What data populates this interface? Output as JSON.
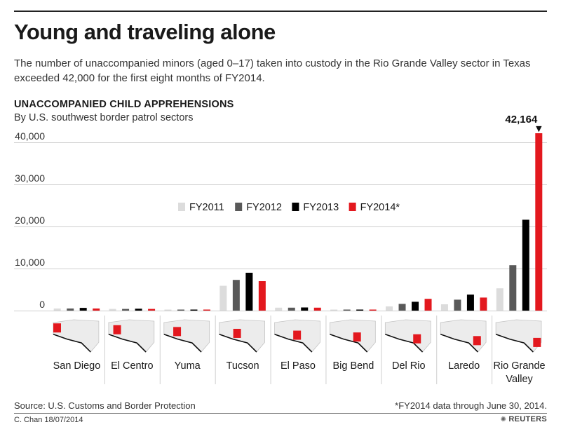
{
  "header": {
    "title": "Young and traveling alone",
    "subtitle": "The number of unaccompanied minors (aged 0–17) taken into custody in the Rio Grande Valley sector in Texas exceeded 42,000 for the first eight months of FY2014."
  },
  "chart_data": {
    "type": "bar",
    "title": "UNACCOMPANIED CHILD APPREHENSIONS",
    "subtitle": "By U.S. southwest border patrol sectors",
    "xlabel": "",
    "ylabel": "",
    "ylim": [
      0,
      42164
    ],
    "yticks": [
      0,
      10000,
      20000,
      30000,
      40000
    ],
    "ytick_labels": [
      "0",
      "10,000",
      "20,000",
      "30,000",
      "40,000"
    ],
    "categories": [
      "San Diego",
      "El Centro",
      "Yuma",
      "Tucson",
      "El Paso",
      "Big Bend",
      "Del Rio",
      "Laredo",
      "Rio Grande Valley"
    ],
    "series": [
      {
        "name": "FY2011",
        "color": "#dcdcdc",
        "values": [
          500,
          400,
          150,
          5900,
          700,
          100,
          1000,
          1500,
          5300
        ]
      },
      {
        "name": "FY2012",
        "color": "#595959",
        "values": [
          500,
          400,
          150,
          7300,
          700,
          100,
          1600,
          2600,
          10800
        ]
      },
      {
        "name": "FY2013",
        "color": "#000000",
        "values": [
          650,
          450,
          200,
          9000,
          750,
          150,
          2100,
          3800,
          21600
        ]
      },
      {
        "name": "FY2014*",
        "color": "#e3181e",
        "values": [
          500,
          400,
          250,
          7000,
          700,
          200,
          2800,
          3100,
          42164
        ]
      }
    ],
    "legend": "center",
    "annotation": {
      "label": "42,164",
      "marker": "▼",
      "category": "Rio Grande Valley"
    },
    "category_icon": "sector-map-icon"
  },
  "footer": {
    "source": "Source: U.S. Customs and Border Protection",
    "footnote": "*FY2014 data through June 30, 2014.",
    "credit": "C. Chan  18/07/2014",
    "brand": "REUTERS",
    "brand_icon": "reuters-logo-icon"
  }
}
